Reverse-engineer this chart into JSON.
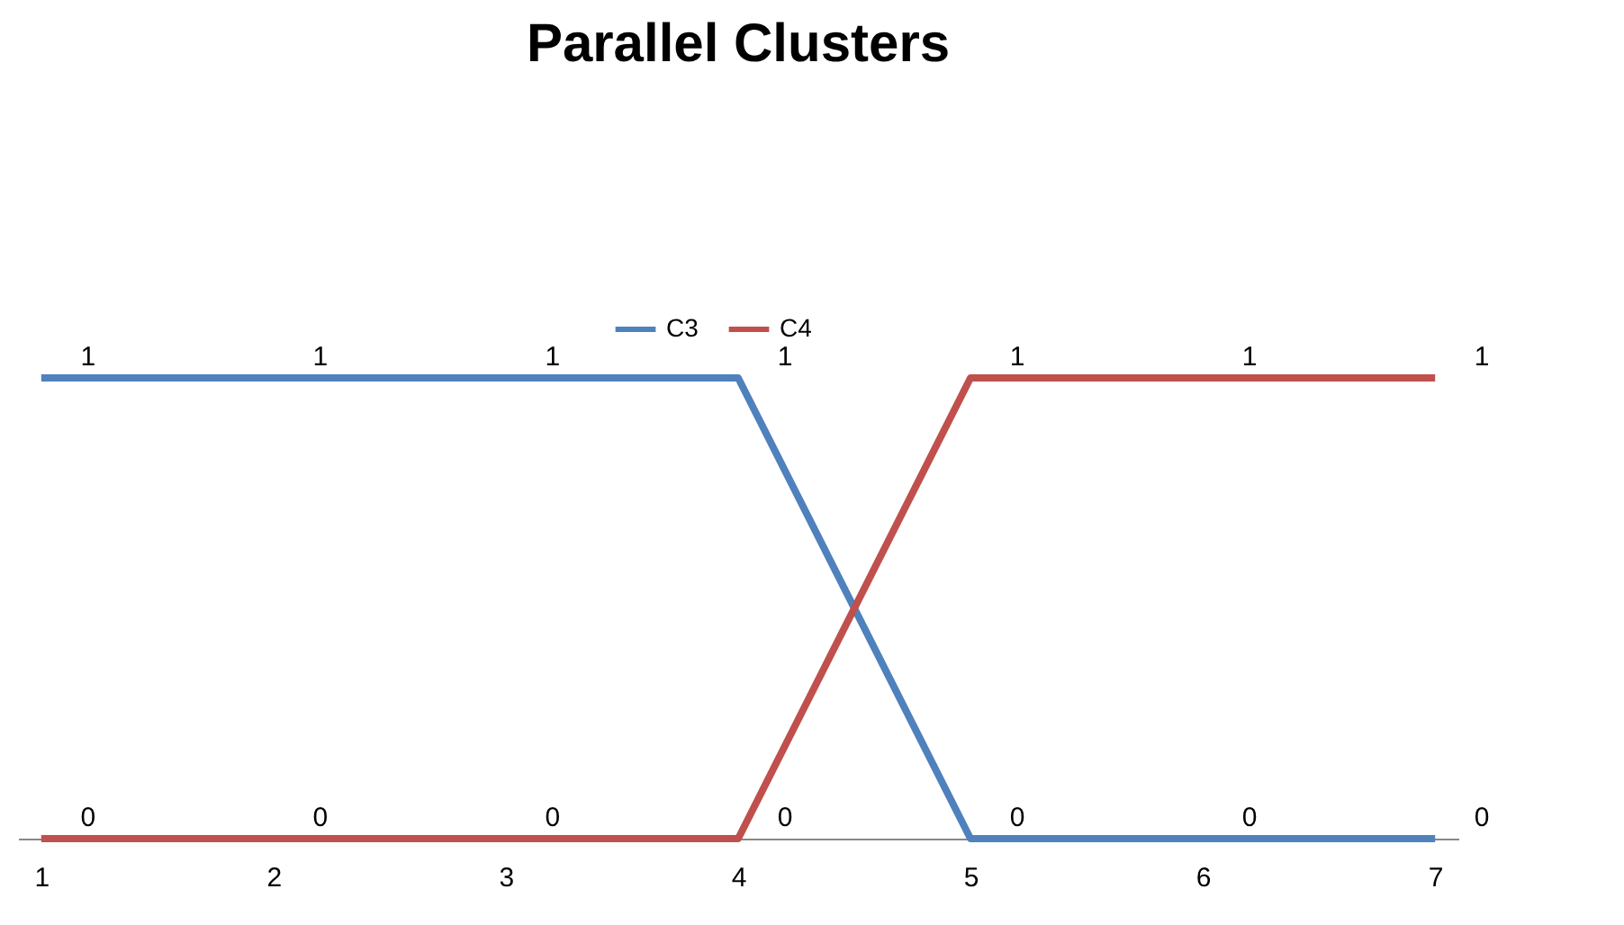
{
  "chart_data": {
    "type": "line",
    "title": "Parallel Clusters",
    "categories": [
      "1",
      "2",
      "3",
      "4",
      "5",
      "6",
      "7"
    ],
    "series": [
      {
        "name": "C3",
        "color": "#4f81bd",
        "values": [
          1,
          1,
          1,
          1,
          0,
          0,
          0
        ]
      },
      {
        "name": "C4",
        "color": "#c0504d",
        "values": [
          0,
          0,
          0,
          0,
          1,
          1,
          1
        ]
      }
    ],
    "data_labels": true,
    "legend": "top",
    "tick_labels": "x",
    "grid": false,
    "marker": "none",
    "line_style": "solid"
  }
}
